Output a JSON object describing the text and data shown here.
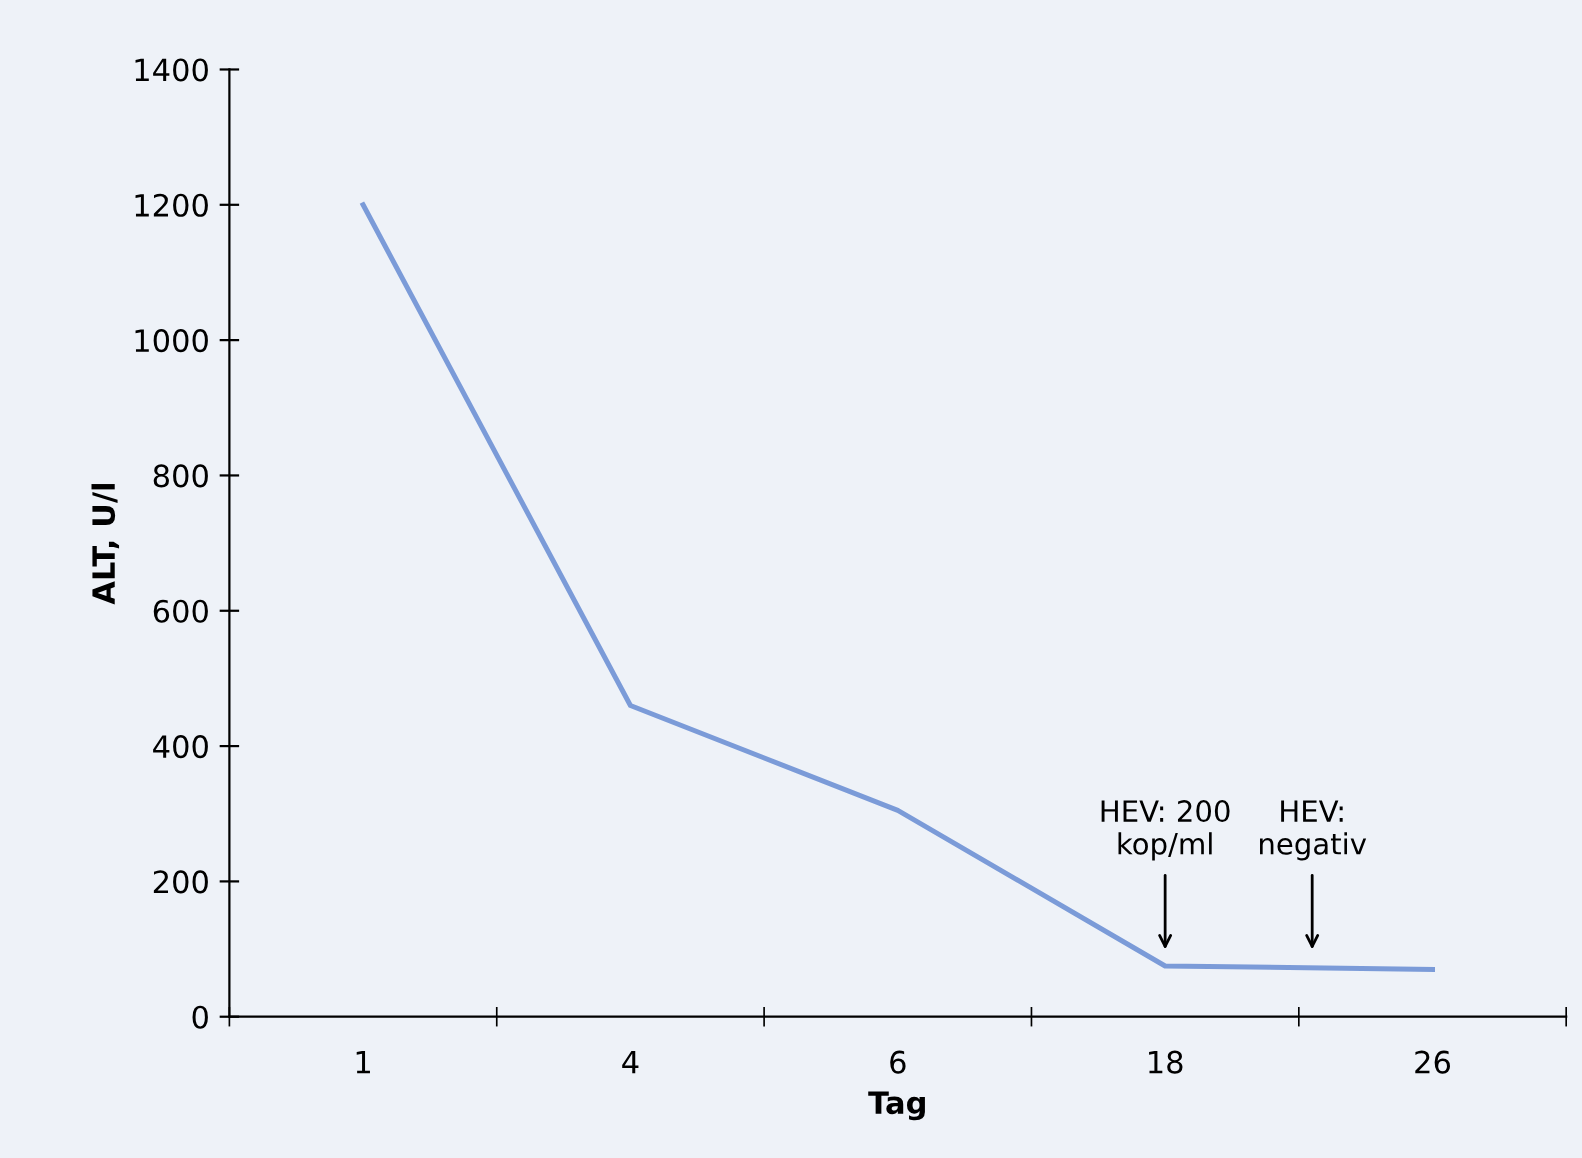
{
  "chart_data": {
    "type": "line",
    "xlabel": "Tag",
    "ylabel": "ALT, U/l",
    "categories": [
      "1",
      "4",
      "6",
      "18",
      "26"
    ],
    "series": [
      {
        "color": "#7b9bd8",
        "values": [
          1200,
          460,
          305,
          75,
          70
        ]
      }
    ],
    "ylim": [
      0,
      1400
    ],
    "yticks": [
      0,
      200,
      400,
      600,
      800,
      1000,
      1200,
      1400
    ],
    "grid": false,
    "legend": false,
    "marker": "none",
    "line_style": "solid",
    "annotations": [
      "HEV: 200\nkop/ml",
      "HEV:\nnegativ"
    ]
  }
}
